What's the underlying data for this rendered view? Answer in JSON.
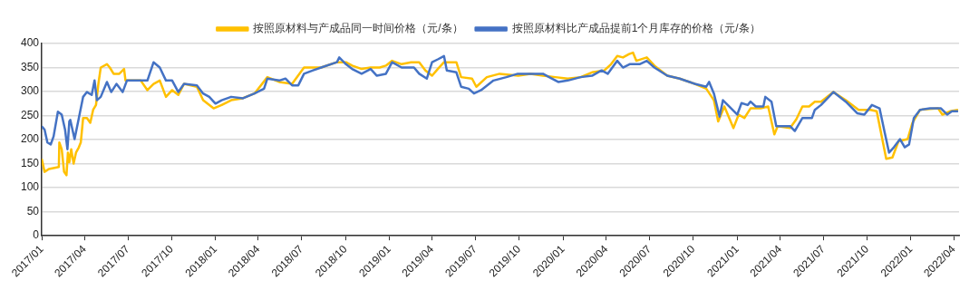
{
  "chart_data": {
    "type": "line",
    "legend": "top",
    "grid": "y",
    "marker": "none",
    "line_style": "solid",
    "ylim": [
      0,
      400
    ],
    "yticks": [
      0,
      50,
      100,
      150,
      200,
      250,
      300,
      350,
      400
    ],
    "xlim": [
      "2017-01-01",
      "2022-04-12"
    ],
    "xticks": [
      {
        "value": "2017-01",
        "label": "2017/01"
      },
      {
        "value": "2017-04",
        "label": "2017/04"
      },
      {
        "value": "2017-07",
        "label": "2017/07"
      },
      {
        "value": "2017-10",
        "label": "2017/10"
      },
      {
        "value": "2018-01",
        "label": "2018/01"
      },
      {
        "value": "2018-04",
        "label": "2018/04"
      },
      {
        "value": "2018-07",
        "label": "2018/07"
      },
      {
        "value": "2018-10",
        "label": "2018/10"
      },
      {
        "value": "2019-01",
        "label": "2019/01"
      },
      {
        "value": "2019-04",
        "label": "2019/04"
      },
      {
        "value": "2019-07",
        "label": "2019/07"
      },
      {
        "value": "2019-10",
        "label": "2019/10"
      },
      {
        "value": "2020-01",
        "label": "2020/01"
      },
      {
        "value": "2020-04",
        "label": "2020/04"
      },
      {
        "value": "2020-07",
        "label": "2020/07"
      },
      {
        "value": "2020-10",
        "label": "2020/10"
      },
      {
        "value": "2021-01",
        "label": "2021/01"
      },
      {
        "value": "2021-04",
        "label": "2021/04"
      },
      {
        "value": "2021-07",
        "label": "2021/07"
      },
      {
        "value": "2021-10",
        "label": "2021/10"
      },
      {
        "value": "2022-01",
        "label": "2022/01"
      },
      {
        "value": "2022-04",
        "label": "2022/04"
      }
    ],
    "series": [
      {
        "name": "按照原材料与产成品同一时间价格（元/条）",
        "color": "#ffc000",
        "x": [
          "2017-01-01",
          "2017-01-07",
          "2017-01-16",
          "2017-02-06",
          "2017-02-07",
          "2017-02-12",
          "2017-02-17",
          "2017-02-22",
          "2017-02-25",
          "2017-02-28",
          "2017-03-04",
          "2017-03-09",
          "2017-03-14",
          "2017-03-20",
          "2017-03-24",
          "2017-03-29",
          "2017-04-06",
          "2017-04-13",
          "2017-04-19",
          "2017-04-25",
          "2017-04-30",
          "2017-05-05",
          "2017-05-18",
          "2017-05-24",
          "2017-06-01",
          "2017-06-13",
          "2017-06-23",
          "2017-06-26",
          "2017-07-28",
          "2017-08-11",
          "2017-08-24",
          "2017-09-06",
          "2017-09-19",
          "2017-10-02",
          "2017-10-15",
          "2017-10-27",
          "2017-11-23",
          "2017-12-06",
          "2017-12-28",
          "2018-01-14",
          "2018-02-03",
          "2018-02-27",
          "2018-03-24",
          "2018-04-20",
          "2018-05-15",
          "2018-06-11",
          "2018-07-06",
          "2018-07-25",
          "2018-08-11",
          "2018-09-13",
          "2018-10-02",
          "2018-10-15",
          "2018-11-04",
          "2018-11-23",
          "2018-12-12",
          "2018-12-25",
          "2019-01-07",
          "2019-01-27",
          "2019-02-16",
          "2019-03-05",
          "2019-03-18",
          "2019-04-01",
          "2019-04-13",
          "2019-04-26",
          "2019-05-09",
          "2019-05-22",
          "2019-06-01",
          "2019-06-24",
          "2019-07-03",
          "2019-07-25",
          "2019-08-21",
          "2019-09-29",
          "2019-10-25",
          "2019-11-20",
          "2019-12-16",
          "2020-01-11",
          "2020-02-07",
          "2020-03-02",
          "2020-03-28",
          "2020-04-11",
          "2020-04-24",
          "2020-05-06",
          "2020-05-19",
          "2020-05-27",
          "2020-06-03",
          "2020-06-25",
          "2020-07-11",
          "2020-08-07",
          "2020-09-02",
          "2020-10-04",
          "2020-10-28",
          "2020-11-13",
          "2020-11-22",
          "2020-12-05",
          "2020-12-24",
          "2021-01-04",
          "2021-01-16",
          "2021-01-29",
          "2021-02-19",
          "2021-03-07",
          "2021-03-20",
          "2021-03-27",
          "2021-04-22",
          "2021-05-05",
          "2021-05-18",
          "2021-06-01",
          "2021-06-13",
          "2021-06-26",
          "2021-07-22",
          "2021-08-17",
          "2021-09-13",
          "2021-10-08",
          "2021-10-21",
          "2021-11-10",
          "2021-11-23",
          "2021-12-06",
          "2021-12-25",
          "2022-01-04",
          "2022-01-20",
          "2022-02-27",
          "2022-03-08",
          "2022-03-24",
          "2022-04-10"
        ],
        "values": [
          160,
          133,
          139,
          143,
          194,
          180,
          133,
          126,
          173,
          153,
          180,
          150,
          173,
          184,
          194,
          245,
          245,
          235,
          262,
          272,
          316,
          350,
          357,
          350,
          337,
          337,
          347,
          323,
          323,
          303,
          316,
          323,
          289,
          303,
          293,
          316,
          310,
          282,
          265,
          272,
          282,
          286,
          296,
          330,
          320,
          316,
          350,
          350,
          350,
          361,
          361,
          354,
          347,
          350,
          350,
          354,
          364,
          357,
          361,
          361,
          344,
          333,
          347,
          361,
          361,
          361,
          330,
          327,
          310,
          330,
          337,
          333,
          337,
          333,
          330,
          327,
          330,
          340,
          344,
          357,
          374,
          371,
          378,
          381,
          364,
          371,
          354,
          333,
          327,
          316,
          306,
          282,
          238,
          269,
          224,
          252,
          245,
          265,
          265,
          269,
          211,
          228,
          224,
          242,
          269,
          269,
          279,
          279,
          299,
          282,
          262,
          262,
          259,
          160,
          163,
          197,
          201,
          235,
          262,
          265,
          252,
          259,
          262
        ]
      },
      {
        "name": "按照原材料比产成品提前1个月库存的价格（元/条）",
        "color": "#4472c4",
        "x": [
          "2017-01-01",
          "2017-01-07",
          "2017-01-13",
          "2017-01-20",
          "2017-01-26",
          "2017-02-04",
          "2017-02-12",
          "2017-02-19",
          "2017-02-24",
          "2017-02-28",
          "2017-03-02",
          "2017-03-11",
          "2017-03-20",
          "2017-03-29",
          "2017-04-06",
          "2017-04-16",
          "2017-04-22",
          "2017-04-27",
          "2017-05-05",
          "2017-05-18",
          "2017-05-27",
          "2017-06-07",
          "2017-06-20",
          "2017-06-29",
          "2017-07-15",
          "2017-08-11",
          "2017-08-24",
          "2017-09-06",
          "2017-09-19",
          "2017-10-02",
          "2017-10-15",
          "2017-10-27",
          "2017-11-23",
          "2017-12-06",
          "2017-12-19",
          "2018-01-01",
          "2018-01-14",
          "2018-02-03",
          "2018-02-28",
          "2018-03-24",
          "2018-04-13",
          "2018-04-20",
          "2018-05-15",
          "2018-05-28",
          "2018-06-11",
          "2018-06-24",
          "2018-07-06",
          "2018-07-25",
          "2018-08-11",
          "2018-09-13",
          "2018-09-18",
          "2018-10-02",
          "2018-10-15",
          "2018-11-04",
          "2018-11-23",
          "2018-12-06",
          "2018-12-25",
          "2019-01-07",
          "2019-01-27",
          "2019-02-22",
          "2019-03-05",
          "2019-03-21",
          "2019-04-01",
          "2019-04-13",
          "2019-04-26",
          "2019-05-02",
          "2019-05-22",
          "2019-06-01",
          "2019-06-17",
          "2019-06-28",
          "2019-07-13",
          "2019-08-08",
          "2019-09-04",
          "2019-09-28",
          "2019-10-25",
          "2019-11-20",
          "2019-12-03",
          "2019-12-22",
          "2020-01-11",
          "2020-02-07",
          "2020-03-02",
          "2020-03-22",
          "2020-04-04",
          "2020-04-24",
          "2020-05-06",
          "2020-05-20",
          "2020-06-02",
          "2020-06-10",
          "2020-06-25",
          "2020-07-11",
          "2020-08-07",
          "2020-09-02",
          "2020-10-04",
          "2020-10-28",
          "2020-11-03",
          "2020-11-13",
          "2020-11-25",
          "2020-12-02",
          "2020-12-15",
          "2021-01-01",
          "2021-01-10",
          "2021-01-23",
          "2021-01-29",
          "2021-02-09",
          "2021-02-25",
          "2021-03-01",
          "2021-03-14",
          "2021-03-24",
          "2021-04-22",
          "2021-05-02",
          "2021-05-18",
          "2021-06-07",
          "2021-06-13",
          "2021-06-26",
          "2021-07-22",
          "2021-08-17",
          "2021-09-10",
          "2021-09-25",
          "2021-10-11",
          "2021-10-27",
          "2021-11-07",
          "2021-11-16",
          "2021-11-26",
          "2021-12-09",
          "2021-12-19",
          "2021-12-28",
          "2022-01-07",
          "2022-01-20",
          "2022-02-10",
          "2022-03-05",
          "2022-03-18",
          "2022-03-28",
          "2022-04-10"
        ],
        "values": [
          228,
          221,
          194,
          190,
          207,
          258,
          252,
          221,
          180,
          238,
          241,
          201,
          245,
          289,
          299,
          293,
          323,
          282,
          289,
          320,
          299,
          316,
          299,
          323,
          323,
          323,
          361,
          350,
          323,
          323,
          299,
          316,
          313,
          296,
          289,
          275,
          282,
          289,
          286,
          296,
          306,
          327,
          323,
          327,
          313,
          313,
          337,
          344,
          350,
          361,
          371,
          357,
          347,
          337,
          347,
          333,
          337,
          361,
          350,
          350,
          337,
          327,
          361,
          367,
          374,
          344,
          340,
          310,
          306,
          296,
          303,
          323,
          330,
          337,
          337,
          337,
          330,
          320,
          323,
          330,
          333,
          344,
          337,
          364,
          350,
          357,
          357,
          357,
          364,
          350,
          333,
          327,
          316,
          310,
          320,
          296,
          248,
          282,
          269,
          252,
          276,
          272,
          279,
          269,
          269,
          289,
          279,
          228,
          228,
          218,
          245,
          245,
          262,
          272,
          299,
          279,
          255,
          252,
          272,
          265,
          214,
          173,
          184,
          201,
          184,
          190,
          245,
          262,
          265,
          265,
          252,
          259,
          259
        ]
      }
    ]
  }
}
